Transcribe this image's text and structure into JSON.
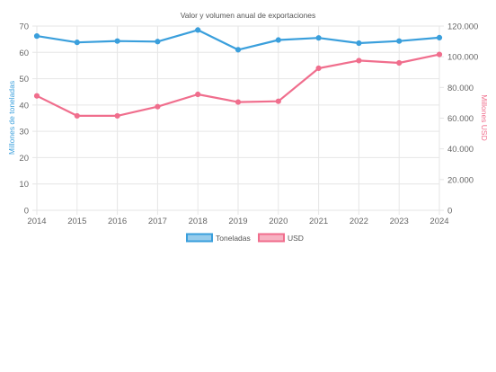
{
  "chart_data": {
    "type": "line",
    "title": "Valor y volumen anual de exportaciones",
    "x": [
      "2014",
      "2015",
      "2016",
      "2017",
      "2018",
      "2019",
      "2020",
      "2021",
      "2022",
      "2023",
      "2024"
    ],
    "series": [
      {
        "name": "Toneladas",
        "axis": "left",
        "color": "#3a9fdc",
        "values": [
          66.2,
          63.8,
          64.3,
          64.1,
          68.5,
          61.0,
          64.7,
          65.5,
          63.5,
          64.3,
          65.6
        ]
      },
      {
        "name": "USD",
        "axis": "right",
        "color": "#f06e8d",
        "values": [
          74500,
          61500,
          61500,
          67500,
          75500,
          70500,
          71000,
          92500,
          97500,
          96000,
          101500
        ]
      }
    ],
    "y_left": {
      "label": "Millones de toneladas",
      "range": [
        0,
        70
      ],
      "ticks": [
        "0",
        "10",
        "20",
        "30",
        "40",
        "50",
        "60",
        "70"
      ],
      "color": "#3a9fdc"
    },
    "y_right": {
      "label": "Millones USD",
      "range": [
        0,
        120000
      ],
      "ticks": [
        "0",
        "20.000",
        "40.000",
        "60.000",
        "80.000",
        "100.000",
        "120.000"
      ],
      "color": "#f06e8d"
    },
    "grid": true,
    "legend_position": "bottom"
  }
}
